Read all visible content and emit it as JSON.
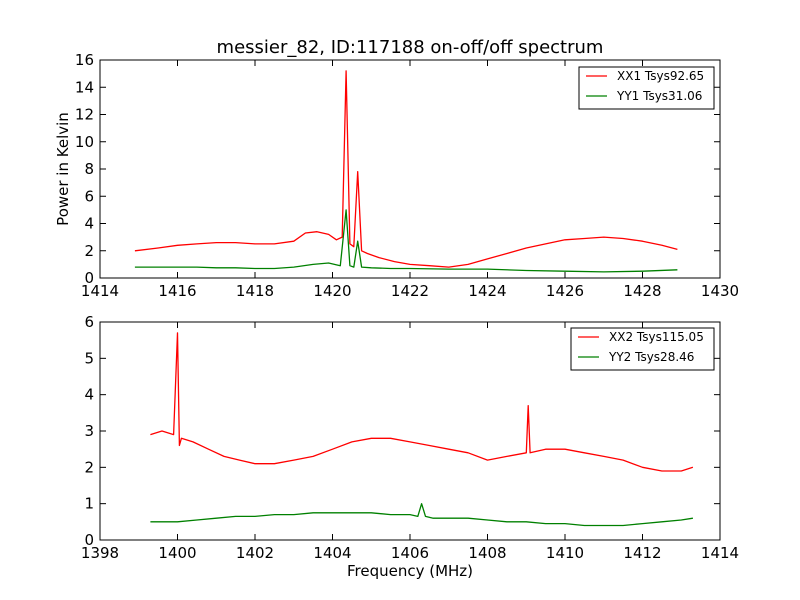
{
  "chart_data": [
    {
      "type": "line",
      "title": "messier_82, ID:117188 on-off/off spectrum",
      "xlabel": "",
      "ylabel": "Power in Kelvin",
      "xlim": [
        1414,
        1430
      ],
      "ylim": [
        0,
        16
      ],
      "xticks": [
        "1414",
        "1416",
        "1418",
        "1420",
        "1422",
        "1424",
        "1426",
        "1428",
        "1430"
      ],
      "yticks": [
        "0",
        "2",
        "4",
        "6",
        "8",
        "10",
        "12",
        "14",
        "16"
      ],
      "legend_position": "top-right",
      "series": [
        {
          "name": "XX1 Tsys92.65",
          "color": "#ff0000",
          "x": [
            1414.9,
            1415.5,
            1416.0,
            1416.5,
            1417.0,
            1417.5,
            1418.0,
            1418.5,
            1419.0,
            1419.3,
            1419.6,
            1419.9,
            1420.1,
            1420.25,
            1420.35,
            1420.45,
            1420.55,
            1420.65,
            1420.75,
            1420.9,
            1421.2,
            1421.6,
            1422.0,
            1422.5,
            1423.0,
            1423.5,
            1424.0,
            1424.5,
            1425.0,
            1425.5,
            1426.0,
            1426.5,
            1427.0,
            1427.5,
            1428.0,
            1428.5,
            1428.9
          ],
          "y": [
            2.0,
            2.2,
            2.4,
            2.5,
            2.6,
            2.6,
            2.5,
            2.5,
            2.7,
            3.3,
            3.4,
            3.2,
            2.8,
            3.0,
            15.2,
            2.5,
            2.3,
            7.8,
            2.0,
            1.8,
            1.5,
            1.2,
            1.0,
            0.9,
            0.8,
            1.0,
            1.4,
            1.8,
            2.2,
            2.5,
            2.8,
            2.9,
            3.0,
            2.9,
            2.7,
            2.4,
            2.1
          ]
        },
        {
          "name": "YY1 Tsys31.06",
          "color": "#008000",
          "x": [
            1414.9,
            1415.5,
            1416.0,
            1416.5,
            1417.0,
            1417.5,
            1418.0,
            1418.5,
            1419.0,
            1419.5,
            1419.9,
            1420.2,
            1420.35,
            1420.45,
            1420.55,
            1420.65,
            1420.75,
            1421.0,
            1421.5,
            1422.0,
            1423.0,
            1424.0,
            1425.0,
            1426.0,
            1427.0,
            1428.0,
            1428.9
          ],
          "y": [
            0.8,
            0.8,
            0.8,
            0.8,
            0.75,
            0.75,
            0.7,
            0.7,
            0.8,
            1.0,
            1.1,
            0.9,
            5.0,
            0.9,
            0.8,
            2.7,
            0.8,
            0.75,
            0.7,
            0.7,
            0.65,
            0.65,
            0.55,
            0.5,
            0.45,
            0.5,
            0.6
          ]
        }
      ]
    },
    {
      "type": "line",
      "title": "",
      "xlabel": "Frequency (MHz)",
      "ylabel": "",
      "xlim": [
        1398,
        1414
      ],
      "ylim": [
        0,
        6
      ],
      "xticks": [
        "1398",
        "1400",
        "1402",
        "1404",
        "1406",
        "1408",
        "1410",
        "1412",
        "1414"
      ],
      "yticks": [
        "0",
        "1",
        "2",
        "3",
        "4",
        "5",
        "6"
      ],
      "legend_position": "top-right",
      "series": [
        {
          "name": "XX2 Tsys115.05",
          "color": "#ff0000",
          "x": [
            1399.3,
            1399.6,
            1399.9,
            1400.0,
            1400.05,
            1400.1,
            1400.4,
            1400.8,
            1401.2,
            1401.6,
            1402.0,
            1402.5,
            1403.0,
            1403.5,
            1404.0,
            1404.5,
            1405.0,
            1405.5,
            1406.0,
            1406.5,
            1407.0,
            1407.5,
            1408.0,
            1408.5,
            1409.0,
            1409.05,
            1409.1,
            1409.5,
            1410.0,
            1410.5,
            1411.0,
            1411.5,
            1412.0,
            1412.5,
            1413.0,
            1413.3
          ],
          "y": [
            2.9,
            3.0,
            2.9,
            5.7,
            2.6,
            2.8,
            2.7,
            2.5,
            2.3,
            2.2,
            2.1,
            2.1,
            2.2,
            2.3,
            2.5,
            2.7,
            2.8,
            2.8,
            2.7,
            2.6,
            2.5,
            2.4,
            2.2,
            2.3,
            2.4,
            3.7,
            2.4,
            2.5,
            2.5,
            2.4,
            2.3,
            2.2,
            2.0,
            1.9,
            1.9,
            2.0
          ]
        },
        {
          "name": "YY2 Tsys28.46",
          "color": "#008000",
          "x": [
            1399.3,
            1400.0,
            1400.5,
            1401.0,
            1401.5,
            1402.0,
            1402.5,
            1403.0,
            1403.5,
            1404.0,
            1404.5,
            1405.0,
            1405.5,
            1406.0,
            1406.2,
            1406.3,
            1406.4,
            1406.6,
            1407.0,
            1407.5,
            1408.0,
            1408.5,
            1409.0,
            1409.5,
            1410.0,
            1410.5,
            1411.0,
            1411.5,
            1412.0,
            1412.5,
            1413.0,
            1413.3
          ],
          "y": [
            0.5,
            0.5,
            0.55,
            0.6,
            0.65,
            0.65,
            0.7,
            0.7,
            0.75,
            0.75,
            0.75,
            0.75,
            0.7,
            0.7,
            0.65,
            1.0,
            0.65,
            0.6,
            0.6,
            0.6,
            0.55,
            0.5,
            0.5,
            0.45,
            0.45,
            0.4,
            0.4,
            0.4,
            0.45,
            0.5,
            0.55,
            0.6
          ]
        }
      ]
    }
  ]
}
